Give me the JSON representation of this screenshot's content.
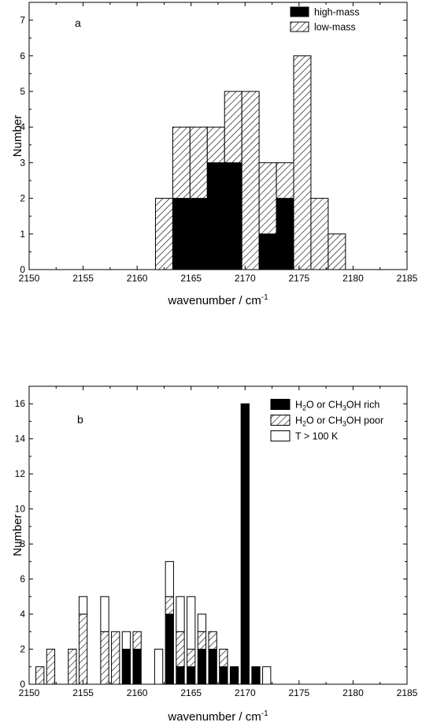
{
  "chart_data": [
    {
      "type": "bar",
      "panel_label": "a",
      "xlabel": "wavenumber / cm",
      "xlabel_sup": "-1",
      "ylabel": "Number",
      "xlim": [
        2150,
        2185
      ],
      "ylim": [
        0,
        7.5
      ],
      "xticks": [
        "2150",
        "2155",
        "2160",
        "2165",
        "2170",
        "2175",
        "2180",
        "2185"
      ],
      "yticks": [
        "0",
        "1",
        "2",
        "3",
        "4",
        "5",
        "6",
        "7"
      ],
      "bin_width": 1.6,
      "stacked": true,
      "legend_position": "top-right",
      "x": [
        2162.5,
        2164.1,
        2165.7,
        2167.3,
        2168.9,
        2170.5,
        2172.1,
        2173.7,
        2175.3,
        2176.9,
        2178.5
      ],
      "series": [
        {
          "name": "high-mass",
          "fill": "solid",
          "values": [
            0,
            2,
            2,
            3,
            3,
            0,
            1,
            2,
            0,
            0,
            0
          ]
        },
        {
          "name": "low-mass",
          "fill": "hatched",
          "values": [
            2,
            2,
            2,
            1,
            2,
            5,
            2,
            1,
            6,
            2,
            1
          ]
        }
      ]
    },
    {
      "type": "bar",
      "panel_label": "b",
      "xlabel": "wavenumber / cm",
      "xlabel_sup": "-1",
      "ylabel": "Number",
      "xlim": [
        2150,
        2185
      ],
      "ylim": [
        0,
        17
      ],
      "xticks": [
        "2150",
        "2155",
        "2160",
        "2165",
        "2170",
        "2175",
        "2180",
        "2185"
      ],
      "yticks": [
        "0",
        "2",
        "4",
        "6",
        "8",
        "10",
        "12",
        "14",
        "16"
      ],
      "bin_width": 0.75,
      "stacked": true,
      "legend_position": "top-right",
      "x": [
        2151.0,
        2152.0,
        2154.0,
        2155.0,
        2157.0,
        2158.0,
        2159.0,
        2160.0,
        2162.0,
        2163.0,
        2164.0,
        2165.0,
        2166.0,
        2167.0,
        2168.0,
        2169.0,
        2170.0,
        2171.0,
        2172.0
      ],
      "series": [
        {
          "name": "H2O or CH3OH rich",
          "fill": "solid",
          "values": [
            0,
            0,
            0,
            0,
            0,
            0,
            2,
            2,
            0,
            4,
            1,
            1,
            2,
            2,
            1,
            1,
            16,
            1,
            0
          ]
        },
        {
          "name": "H2O or CH3OH poor",
          "fill": "hatched",
          "values": [
            1,
            2,
            2,
            4,
            3,
            3,
            0,
            1,
            0,
            1,
            2,
            1,
            1,
            1,
            1,
            0,
            0,
            0,
            0
          ]
        },
        {
          "name": "T > 100 K",
          "fill": "open",
          "values": [
            0,
            0,
            0,
            1,
            2,
            0,
            1,
            0,
            2,
            2,
            2,
            3,
            1,
            0,
            0,
            0,
            0,
            0,
            1
          ]
        }
      ],
      "legend_labels": [
        [
          "H",
          "2",
          "O or CH",
          "3",
          "OH rich"
        ],
        [
          "H",
          "2",
          "O or CH",
          "3",
          "OH poor"
        ],
        [
          "T > 100 K"
        ]
      ]
    }
  ]
}
